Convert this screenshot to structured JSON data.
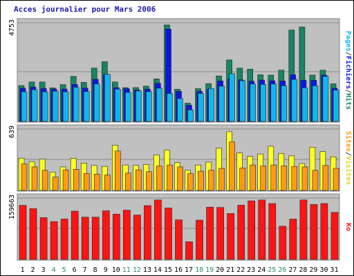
{
  "chart_data": {
    "type": "bar",
    "title": "Acces journalier pour Mars 2006",
    "categories": [
      "1",
      "2",
      "3",
      "4",
      "5",
      "6",
      "7",
      "8",
      "9",
      "10",
      "11",
      "12",
      "13",
      "14",
      "15",
      "16",
      "17",
      "18",
      "19",
      "20",
      "21",
      "22",
      "23",
      "24",
      "25",
      "26",
      "27",
      "28",
      "29",
      "30",
      "31"
    ],
    "weekend_days": [
      "4",
      "5",
      "11",
      "12",
      "18",
      "19",
      "25",
      "26"
    ],
    "panels": [
      {
        "name": "hits-pages-files",
        "ymax": 4753,
        "ymax_label": "4753",
        "side_label": [
          "Pages",
          "/",
          "Fichiers",
          "/",
          "Hits"
        ],
        "series": [
          {
            "name": "Hits",
            "color": "#1a8464",
            "values": [
              1730,
              1900,
              1900,
              1620,
              1770,
              2170,
              1880,
              2570,
              2880,
              1900,
              1630,
              1630,
              1700,
              2050,
              4650,
              1550,
              880,
              1580,
              1820,
              2190,
              2960,
              2570,
              2520,
              2250,
              2230,
              2470,
              4400,
              4550,
              2230,
              2470,
              1810
            ]
          },
          {
            "name": "Fichiers",
            "color": "#0a18e6",
            "values": [
              1600,
              1660,
              1590,
              1560,
              1560,
              1780,
              1610,
              2030,
              2270,
              1630,
              1580,
              1510,
              1560,
              1840,
              4450,
              1450,
              780,
              1450,
              1550,
              1950,
              2050,
              2000,
              1940,
              1990,
              1960,
              1950,
              2250,
              1980,
              1980,
              2230,
              1600
            ]
          },
          {
            "name": "Pages",
            "color": "#13b6ec",
            "values": [
              1430,
              1530,
              1430,
              1460,
              1430,
              1650,
              1440,
              1800,
              2270,
              1550,
              1400,
              1470,
              1440,
              1600,
              1350,
              1100,
              560,
              1350,
              1590,
              1700,
              2300,
              1960,
              1800,
              1780,
              1800,
              1720,
              2020,
              1620,
              1720,
              2170,
              1510
            ]
          }
        ]
      },
      {
        "name": "visits-sites",
        "ymax": 639,
        "ymax_label": "639",
        "side_label": [
          "Sites",
          "/",
          "Visites"
        ],
        "series": [
          {
            "name": "Visites",
            "color": "#ffff22",
            "values": [
              335,
              300,
              325,
              190,
              245,
              335,
              285,
              260,
              250,
              470,
              265,
              260,
              270,
              370,
              420,
              290,
              210,
              265,
              295,
              440,
              610,
              390,
              355,
              380,
              460,
              385,
              360,
              280,
              450,
              405,
              350
            ]
          },
          {
            "name": "Sites",
            "color": "#ff9a14",
            "values": [
              275,
              245,
              210,
              140,
              215,
              220,
              175,
              170,
              160,
              410,
              180,
              215,
              195,
              255,
              265,
              245,
              175,
              200,
              210,
              230,
              505,
              235,
              265,
              255,
              265,
              255,
              250,
              245,
              210,
              260,
              230
            ]
          }
        ]
      },
      {
        "name": "kb",
        "ymax": 159663,
        "ymax_label": "159663",
        "side_label": [
          "Ko"
        ],
        "series": [
          {
            "name": "Ko",
            "color": "#ff1414",
            "values": [
              140700,
              132000,
              108800,
              98400,
              105000,
              125500,
              110000,
              110000,
              126500,
              117800,
              128000,
              115600,
              140000,
              154700,
              133800,
              103000,
              46000,
              102200,
              136000,
              135000,
              119500,
              141000,
              152300,
              154700,
              145400,
              86500,
              105000,
              154700,
              142800,
              145400,
              122200
            ]
          }
        ]
      }
    ]
  }
}
